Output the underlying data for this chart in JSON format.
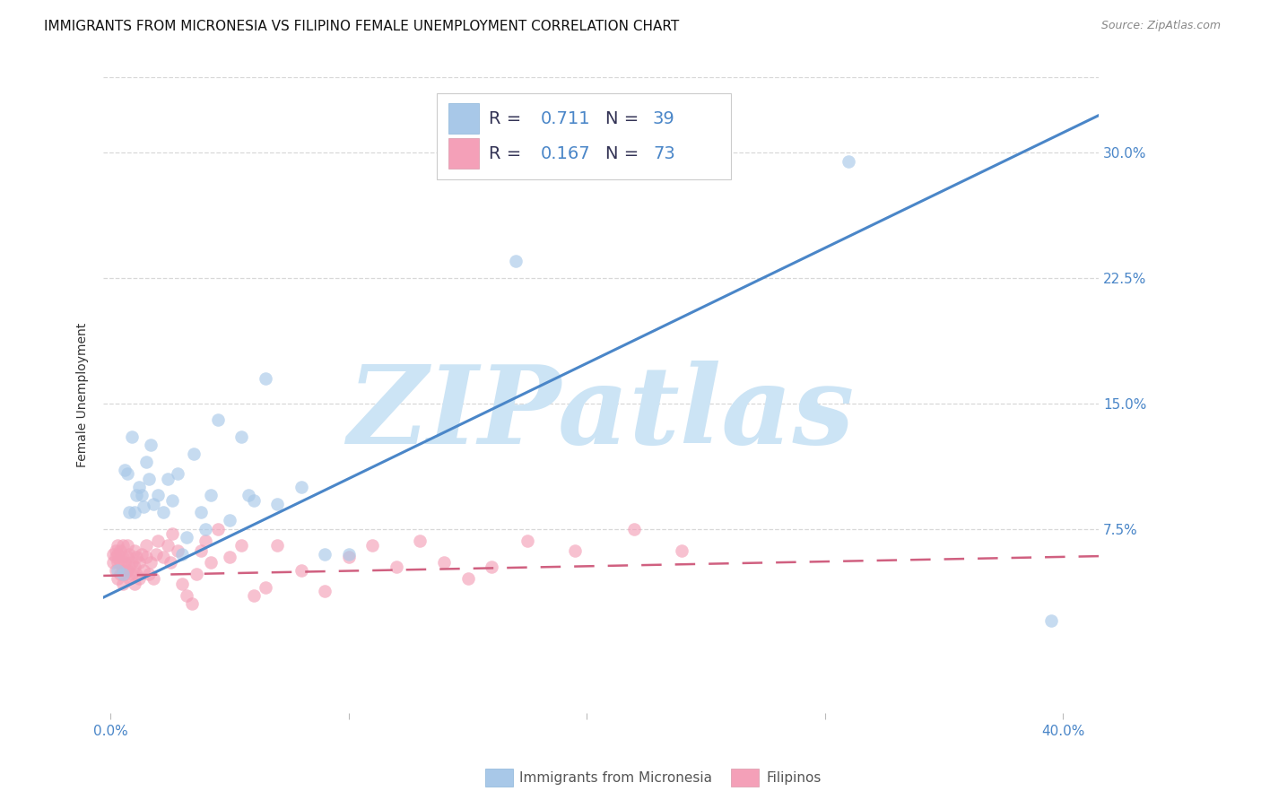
{
  "title": "IMMIGRANTS FROM MICRONESIA VS FILIPINO FEMALE UNEMPLOYMENT CORRELATION CHART",
  "source_text": "Source: ZipAtlas.com",
  "ylabel": "Female Unemployment",
  "x_tick_labels": [
    "0.0%",
    "",
    "",
    "",
    "40.0%"
  ],
  "x_tick_vals": [
    0.0,
    0.1,
    0.2,
    0.3,
    0.4
  ],
  "y_tick_labels_right": [
    "7.5%",
    "15.0%",
    "22.5%",
    "30.0%"
  ],
  "y_tick_vals": [
    0.075,
    0.15,
    0.225,
    0.3
  ],
  "xlim": [
    -0.003,
    0.415
  ],
  "ylim": [
    -0.035,
    0.345
  ],
  "blue_dot_color": "#a8c8e8",
  "pink_dot_color": "#f4a0b8",
  "blue_line_color": "#4a86c8",
  "pink_line_color": "#d06080",
  "background_color": "#ffffff",
  "grid_color": "#d8d8d8",
  "watermark_text": "ZIPatlas",
  "watermark_color": "#cce4f5",
  "title_fontsize": 11,
  "axis_label_fontsize": 10,
  "tick_label_fontsize": 11,
  "right_tick_color": "#4a86c8",
  "legend_blue_R": "0.711",
  "legend_blue_N": "39",
  "legend_pink_R": "0.167",
  "legend_pink_N": "73",
  "legend_R_color": "#333355",
  "legend_val_color": "#4a86c8",
  "blue_scatter_x": [
    0.003,
    0.005,
    0.006,
    0.007,
    0.008,
    0.009,
    0.01,
    0.011,
    0.012,
    0.013,
    0.014,
    0.015,
    0.016,
    0.017,
    0.018,
    0.02,
    0.022,
    0.024,
    0.026,
    0.028,
    0.03,
    0.032,
    0.035,
    0.038,
    0.04,
    0.042,
    0.045,
    0.05,
    0.055,
    0.058,
    0.06,
    0.065,
    0.07,
    0.08,
    0.09,
    0.1,
    0.17,
    0.31,
    0.395
  ],
  "blue_scatter_y": [
    0.05,
    0.048,
    0.11,
    0.108,
    0.085,
    0.13,
    0.085,
    0.095,
    0.1,
    0.095,
    0.088,
    0.115,
    0.105,
    0.125,
    0.09,
    0.095,
    0.085,
    0.105,
    0.092,
    0.108,
    0.06,
    0.07,
    0.12,
    0.085,
    0.075,
    0.095,
    0.14,
    0.08,
    0.13,
    0.095,
    0.092,
    0.165,
    0.09,
    0.1,
    0.06,
    0.06,
    0.235,
    0.295,
    0.02
  ],
  "pink_scatter_x": [
    0.001,
    0.001,
    0.002,
    0.002,
    0.002,
    0.003,
    0.003,
    0.003,
    0.003,
    0.004,
    0.004,
    0.004,
    0.005,
    0.005,
    0.005,
    0.005,
    0.006,
    0.006,
    0.007,
    0.007,
    0.007,
    0.008,
    0.008,
    0.008,
    0.009,
    0.009,
    0.01,
    0.01,
    0.01,
    0.011,
    0.011,
    0.012,
    0.012,
    0.013,
    0.014,
    0.015,
    0.015,
    0.016,
    0.017,
    0.018,
    0.019,
    0.02,
    0.022,
    0.024,
    0.025,
    0.026,
    0.028,
    0.03,
    0.032,
    0.034,
    0.036,
    0.038,
    0.04,
    0.042,
    0.045,
    0.05,
    0.055,
    0.06,
    0.065,
    0.07,
    0.08,
    0.09,
    0.1,
    0.11,
    0.12,
    0.13,
    0.14,
    0.15,
    0.16,
    0.175,
    0.195,
    0.22,
    0.24
  ],
  "pink_scatter_y": [
    0.055,
    0.06,
    0.05,
    0.058,
    0.062,
    0.045,
    0.055,
    0.06,
    0.065,
    0.048,
    0.055,
    0.062,
    0.042,
    0.05,
    0.058,
    0.065,
    0.048,
    0.055,
    0.05,
    0.058,
    0.065,
    0.045,
    0.052,
    0.06,
    0.048,
    0.055,
    0.042,
    0.052,
    0.062,
    0.048,
    0.058,
    0.045,
    0.055,
    0.06,
    0.05,
    0.058,
    0.065,
    0.048,
    0.055,
    0.045,
    0.06,
    0.068,
    0.058,
    0.065,
    0.055,
    0.072,
    0.062,
    0.042,
    0.035,
    0.03,
    0.048,
    0.062,
    0.068,
    0.055,
    0.075,
    0.058,
    0.065,
    0.035,
    0.04,
    0.065,
    0.05,
    0.038,
    0.058,
    0.065,
    0.052,
    0.068,
    0.055,
    0.045,
    0.052,
    0.068,
    0.062,
    0.075,
    0.062
  ],
  "blue_line_intercept": 0.036,
  "blue_line_slope": 0.69,
  "pink_line_intercept": 0.047,
  "pink_line_slope": 0.028,
  "bottom_legend_label1": "Immigrants from Micronesia",
  "bottom_legend_label2": "Filipinos"
}
